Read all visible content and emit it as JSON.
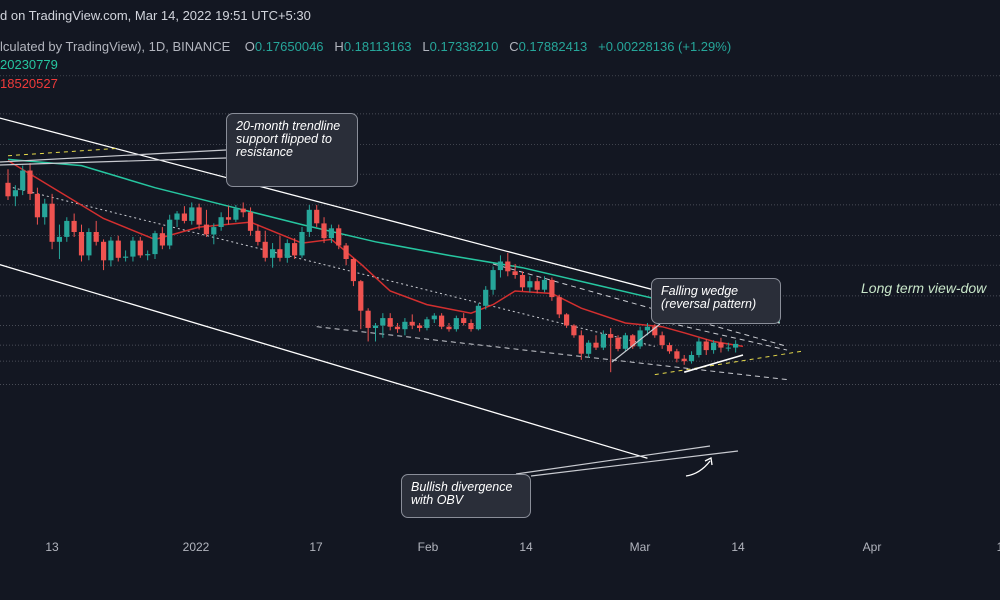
{
  "header": {
    "credit": "d on TradingView.com, Mar 14, 2022 19:51 UTC+5:30",
    "symbol": "lculated by TradingView), 1D, BINANCE",
    "open_label": "O",
    "open": "0.17650046",
    "high_label": "H",
    "high": "0.18113163",
    "low_label": "L",
    "low": "0.17338210",
    "close_label": "C",
    "close": "0.17882413",
    "change": "+0.00228136 (+1.29%)",
    "ema_1": "20230779",
    "ema_2": "18520527"
  },
  "annotations": {
    "trendline": "20-month trendline support flipped to resistance",
    "wedge": "Falling wedge (reversal pattern)",
    "divergence": "Bullish divergence with OBV",
    "view": "Long term view-dow"
  },
  "colors": {
    "background": "#131722",
    "up_candle": "#26a69a",
    "down_candle": "#ef5350",
    "ema_fast": "#d32f2f",
    "ema_slow": "#26c6a0",
    "channel_line": "#ffffff",
    "dotted_level": "#9598a1",
    "wedge_line": "#c9cbd1",
    "support_dash": "#e5d94a"
  },
  "chart_data": {
    "type": "candlestick",
    "x_ticks": [
      "13",
      "2022",
      "17",
      "Feb",
      "14",
      "Mar",
      "14",
      "Apr",
      "1"
    ],
    "candles_start_day": "Dec 1",
    "candles": [
      {
        "o": 0.214,
        "h": 0.225,
        "l": 0.2,
        "c": 0.203
      },
      {
        "o": 0.203,
        "h": 0.212,
        "l": 0.195,
        "c": 0.208
      },
      {
        "o": 0.208,
        "h": 0.228,
        "l": 0.204,
        "c": 0.224
      },
      {
        "o": 0.224,
        "h": 0.23,
        "l": 0.2,
        "c": 0.205
      },
      {
        "o": 0.205,
        "h": 0.21,
        "l": 0.18,
        "c": 0.186
      },
      {
        "o": 0.186,
        "h": 0.201,
        "l": 0.18,
        "c": 0.197
      },
      {
        "o": 0.197,
        "h": 0.205,
        "l": 0.16,
        "c": 0.166
      },
      {
        "o": 0.166,
        "h": 0.18,
        "l": 0.152,
        "c": 0.17
      },
      {
        "o": 0.17,
        "h": 0.186,
        "l": 0.166,
        "c": 0.183
      },
      {
        "o": 0.183,
        "h": 0.189,
        "l": 0.17,
        "c": 0.174
      },
      {
        "o": 0.174,
        "h": 0.18,
        "l": 0.15,
        "c": 0.155
      },
      {
        "o": 0.155,
        "h": 0.177,
        "l": 0.151,
        "c": 0.174
      },
      {
        "o": 0.174,
        "h": 0.183,
        "l": 0.163,
        "c": 0.166
      },
      {
        "o": 0.166,
        "h": 0.168,
        "l": 0.143,
        "c": 0.151
      },
      {
        "o": 0.151,
        "h": 0.17,
        "l": 0.146,
        "c": 0.167
      },
      {
        "o": 0.167,
        "h": 0.171,
        "l": 0.15,
        "c": 0.153
      },
      {
        "o": 0.153,
        "h": 0.159,
        "l": 0.15,
        "c": 0.154
      },
      {
        "o": 0.154,
        "h": 0.17,
        "l": 0.15,
        "c": 0.167
      },
      {
        "o": 0.167,
        "h": 0.17,
        "l": 0.153,
        "c": 0.155
      },
      {
        "o": 0.155,
        "h": 0.159,
        "l": 0.151,
        "c": 0.156
      },
      {
        "o": 0.156,
        "h": 0.175,
        "l": 0.152,
        "c": 0.173
      },
      {
        "o": 0.173,
        "h": 0.178,
        "l": 0.16,
        "c": 0.163
      },
      {
        "o": 0.163,
        "h": 0.188,
        "l": 0.16,
        "c": 0.184
      },
      {
        "o": 0.184,
        "h": 0.191,
        "l": 0.178,
        "c": 0.189
      },
      {
        "o": 0.189,
        "h": 0.195,
        "l": 0.181,
        "c": 0.183
      },
      {
        "o": 0.183,
        "h": 0.198,
        "l": 0.18,
        "c": 0.194
      },
      {
        "o": 0.194,
        "h": 0.197,
        "l": 0.176,
        "c": 0.18
      },
      {
        "o": 0.18,
        "h": 0.192,
        "l": 0.17,
        "c": 0.172
      },
      {
        "o": 0.172,
        "h": 0.181,
        "l": 0.164,
        "c": 0.178
      },
      {
        "o": 0.178,
        "h": 0.19,
        "l": 0.175,
        "c": 0.186
      },
      {
        "o": 0.186,
        "h": 0.195,
        "l": 0.18,
        "c": 0.184
      },
      {
        "o": 0.184,
        "h": 0.196,
        "l": 0.182,
        "c": 0.193
      },
      {
        "o": 0.193,
        "h": 0.198,
        "l": 0.186,
        "c": 0.19
      },
      {
        "o": 0.19,
        "h": 0.194,
        "l": 0.171,
        "c": 0.175
      },
      {
        "o": 0.175,
        "h": 0.18,
        "l": 0.163,
        "c": 0.166
      },
      {
        "o": 0.166,
        "h": 0.175,
        "l": 0.15,
        "c": 0.153
      },
      {
        "o": 0.153,
        "h": 0.165,
        "l": 0.145,
        "c": 0.16
      },
      {
        "o": 0.16,
        "h": 0.171,
        "l": 0.15,
        "c": 0.153
      },
      {
        "o": 0.153,
        "h": 0.168,
        "l": 0.149,
        "c": 0.165
      },
      {
        "o": 0.165,
        "h": 0.169,
        "l": 0.152,
        "c": 0.155
      },
      {
        "o": 0.155,
        "h": 0.178,
        "l": 0.153,
        "c": 0.174
      },
      {
        "o": 0.174,
        "h": 0.196,
        "l": 0.17,
        "c": 0.192
      },
      {
        "o": 0.192,
        "h": 0.196,
        "l": 0.178,
        "c": 0.181
      },
      {
        "o": 0.181,
        "h": 0.186,
        "l": 0.165,
        "c": 0.169
      },
      {
        "o": 0.169,
        "h": 0.18,
        "l": 0.165,
        "c": 0.177
      },
      {
        "o": 0.177,
        "h": 0.18,
        "l": 0.16,
        "c": 0.163
      },
      {
        "o": 0.163,
        "h": 0.165,
        "l": 0.147,
        "c": 0.152
      },
      {
        "o": 0.152,
        "h": 0.153,
        "l": 0.13,
        "c": 0.134
      },
      {
        "o": 0.134,
        "h": 0.135,
        "l": 0.095,
        "c": 0.11
      },
      {
        "o": 0.11,
        "h": 0.112,
        "l": 0.085,
        "c": 0.096
      },
      {
        "o": 0.096,
        "h": 0.1,
        "l": 0.085,
        "c": 0.098
      },
      {
        "o": 0.098,
        "h": 0.108,
        "l": 0.088,
        "c": 0.104
      },
      {
        "o": 0.104,
        "h": 0.108,
        "l": 0.094,
        "c": 0.097
      },
      {
        "o": 0.097,
        "h": 0.1,
        "l": 0.092,
        "c": 0.095
      },
      {
        "o": 0.095,
        "h": 0.104,
        "l": 0.09,
        "c": 0.101
      },
      {
        "o": 0.101,
        "h": 0.107,
        "l": 0.095,
        "c": 0.098
      },
      {
        "o": 0.098,
        "h": 0.1,
        "l": 0.093,
        "c": 0.096
      },
      {
        "o": 0.096,
        "h": 0.105,
        "l": 0.094,
        "c": 0.103
      },
      {
        "o": 0.103,
        "h": 0.108,
        "l": 0.1,
        "c": 0.106
      },
      {
        "o": 0.106,
        "h": 0.108,
        "l": 0.095,
        "c": 0.097
      },
      {
        "o": 0.097,
        "h": 0.1,
        "l": 0.093,
        "c": 0.095
      },
      {
        "o": 0.095,
        "h": 0.106,
        "l": 0.093,
        "c": 0.104
      },
      {
        "o": 0.104,
        "h": 0.108,
        "l": 0.098,
        "c": 0.1
      },
      {
        "o": 0.1,
        "h": 0.103,
        "l": 0.093,
        "c": 0.095
      },
      {
        "o": 0.095,
        "h": 0.116,
        "l": 0.094,
        "c": 0.114
      },
      {
        "o": 0.114,
        "h": 0.13,
        "l": 0.111,
        "c": 0.127
      },
      {
        "o": 0.127,
        "h": 0.146,
        "l": 0.123,
        "c": 0.143
      },
      {
        "o": 0.143,
        "h": 0.155,
        "l": 0.137,
        "c": 0.15
      },
      {
        "o": 0.15,
        "h": 0.157,
        "l": 0.138,
        "c": 0.142
      },
      {
        "o": 0.142,
        "h": 0.148,
        "l": 0.136,
        "c": 0.139
      },
      {
        "o": 0.139,
        "h": 0.142,
        "l": 0.126,
        "c": 0.129
      },
      {
        "o": 0.129,
        "h": 0.138,
        "l": 0.125,
        "c": 0.134
      },
      {
        "o": 0.134,
        "h": 0.137,
        "l": 0.124,
        "c": 0.127
      },
      {
        "o": 0.127,
        "h": 0.138,
        "l": 0.125,
        "c": 0.135
      },
      {
        "o": 0.135,
        "h": 0.137,
        "l": 0.118,
        "c": 0.121
      },
      {
        "o": 0.121,
        "h": 0.123,
        "l": 0.104,
        "c": 0.107
      },
      {
        "o": 0.107,
        "h": 0.108,
        "l": 0.096,
        "c": 0.098
      },
      {
        "o": 0.098,
        "h": 0.099,
        "l": 0.088,
        "c": 0.09
      },
      {
        "o": 0.09,
        "h": 0.094,
        "l": 0.07,
        "c": 0.075
      },
      {
        "o": 0.075,
        "h": 0.086,
        "l": 0.072,
        "c": 0.084
      },
      {
        "o": 0.084,
        "h": 0.09,
        "l": 0.078,
        "c": 0.08
      },
      {
        "o": 0.08,
        "h": 0.094,
        "l": 0.078,
        "c": 0.091
      },
      {
        "o": 0.091,
        "h": 0.096,
        "l": 0.06,
        "c": 0.088
      },
      {
        "o": 0.088,
        "h": 0.09,
        "l": 0.077,
        "c": 0.079
      },
      {
        "o": 0.079,
        "h": 0.092,
        "l": 0.077,
        "c": 0.09
      },
      {
        "o": 0.09,
        "h": 0.091,
        "l": 0.079,
        "c": 0.081
      },
      {
        "o": 0.081,
        "h": 0.097,
        "l": 0.079,
        "c": 0.094
      },
      {
        "o": 0.094,
        "h": 0.1,
        "l": 0.09,
        "c": 0.097
      },
      {
        "o": 0.097,
        "h": 0.099,
        "l": 0.088,
        "c": 0.09
      },
      {
        "o": 0.09,
        "h": 0.093,
        "l": 0.079,
        "c": 0.082
      },
      {
        "o": 0.082,
        "h": 0.084,
        "l": 0.075,
        "c": 0.077
      },
      {
        "o": 0.077,
        "h": 0.079,
        "l": 0.068,
        "c": 0.071
      },
      {
        "o": 0.071,
        "h": 0.074,
        "l": 0.066,
        "c": 0.069
      },
      {
        "o": 0.069,
        "h": 0.077,
        "l": 0.067,
        "c": 0.074
      },
      {
        "o": 0.074,
        "h": 0.088,
        "l": 0.072,
        "c": 0.085
      },
      {
        "o": 0.085,
        "h": 0.087,
        "l": 0.074,
        "c": 0.078
      },
      {
        "o": 0.078,
        "h": 0.086,
        "l": 0.075,
        "c": 0.084
      },
      {
        "o": 0.084,
        "h": 0.088,
        "l": 0.076,
        "c": 0.08
      },
      {
        "o": 0.08,
        "h": 0.084,
        "l": 0.077,
        "c": 0.08
      },
      {
        "o": 0.08,
        "h": 0.086,
        "l": 0.076,
        "c": 0.083
      }
    ],
    "ema_fast": [
      [
        0,
        0.232
      ],
      [
        13,
        0.185
      ],
      [
        20,
        0.168
      ],
      [
        26,
        0.178
      ],
      [
        33,
        0.182
      ],
      [
        40,
        0.165
      ],
      [
        44,
        0.168
      ],
      [
        48,
        0.148
      ],
      [
        52,
        0.126
      ],
      [
        57,
        0.115
      ],
      [
        63,
        0.108
      ],
      [
        66,
        0.115
      ],
      [
        69,
        0.126
      ],
      [
        74,
        0.124
      ],
      [
        78,
        0.112
      ],
      [
        84,
        0.1
      ],
      [
        89,
        0.097
      ],
      [
        92,
        0.092
      ],
      [
        96,
        0.085
      ],
      [
        100,
        0.081
      ]
    ],
    "ema_slow": [
      [
        0,
        0.233
      ],
      [
        10,
        0.228
      ],
      [
        20,
        0.21
      ],
      [
        30,
        0.195
      ],
      [
        40,
        0.18
      ],
      [
        50,
        0.166
      ],
      [
        60,
        0.155
      ],
      [
        70,
        0.145
      ],
      [
        80,
        0.131
      ],
      [
        90,
        0.117
      ],
      [
        100,
        0.105
      ],
      [
        105,
        0.101
      ]
    ],
    "channel_upper": [
      [
        -2,
        0.268
      ],
      [
        105,
        0.1
      ]
    ],
    "channel_lower": [
      [
        -2,
        0.149
      ],
      [
        87,
        -0.01
      ]
    ],
    "dotted_diagonal": [
      [
        0,
        0.211
      ],
      [
        88,
        0.081
      ]
    ],
    "wedge_upper": [
      [
        66,
        0.148
      ],
      [
        106,
        0.081
      ]
    ],
    "wedge_lower": [
      [
        42,
        0.097
      ],
      [
        106,
        0.054
      ]
    ],
    "wedge_dashed_extra": [
      [
        90,
        0.1
      ],
      [
        106,
        0.078
      ]
    ],
    "trendline_segment": [
      [
        0,
        0.236
      ],
      [
        15,
        0.242
      ]
    ],
    "support_dashed": [
      [
        88,
        0.058
      ],
      [
        108,
        0.077
      ]
    ],
    "divergence_line": [
      [
        92,
        0.06
      ],
      [
        100,
        0.074
      ]
    ],
    "horizontal_levels": [
      0.301,
      0.27,
      0.245,
      0.221,
      0.196,
      0.171,
      0.147,
      0.122,
      0.098,
      0.082,
      0.069,
      0.05
    ]
  }
}
